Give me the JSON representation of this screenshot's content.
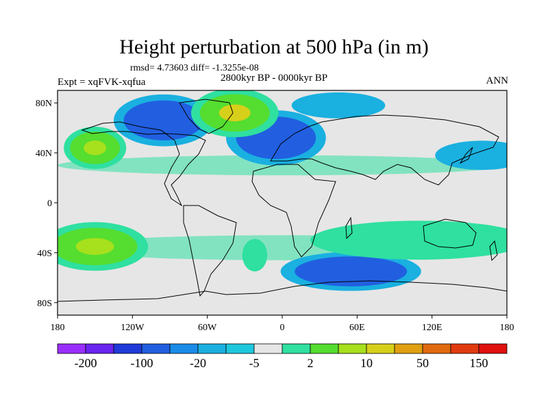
{
  "title": "Height perturbation at 500 hPa (in m)",
  "stats": "rmsd= 4.73603 diff= -1.3255e-08",
  "experiment": "Expt = xqFVK-xqfua",
  "period": "2800kyr BP - 0000kyr BP",
  "season": "ANN",
  "map": {
    "lon_range": [
      -180,
      180
    ],
    "lat_range": [
      -90,
      90
    ],
    "x_ticks": [
      {
        "lon": -180,
        "label": "180"
      },
      {
        "lon": -120,
        "label": "120W"
      },
      {
        "lon": -60,
        "label": "60W"
      },
      {
        "lon": 0,
        "label": "0"
      },
      {
        "lon": 60,
        "label": "60E"
      },
      {
        "lon": 120,
        "label": "120E"
      },
      {
        "lon": 180,
        "label": "180"
      }
    ],
    "y_ticks": [
      {
        "lat": 80,
        "label": "80N"
      },
      {
        "lat": 40,
        "label": "40N"
      },
      {
        "lat": 0,
        "label": "0"
      },
      {
        "lat": -40,
        "label": "40S"
      },
      {
        "lat": -80,
        "label": "80S"
      }
    ],
    "anomalies": [
      {
        "name": "north-atlantic-low",
        "lon": -5,
        "lat": 52,
        "rlon": 32,
        "rlat": 17,
        "level": -20
      },
      {
        "name": "canada-low",
        "lon": -95,
        "lat": 66,
        "rlon": 32,
        "rlat": 16,
        "level": -20
      },
      {
        "name": "greenland-high",
        "lon": -38,
        "lat": 72,
        "rlon": 28,
        "rlat": 15,
        "level": 10
      },
      {
        "name": "pacific-high",
        "lon": -150,
        "lat": 44,
        "rlon": 20,
        "rlat": 13,
        "level": 10
      },
      {
        "name": "north-pacific-low",
        "lon": 160,
        "lat": 38,
        "rlon": 30,
        "rlat": 9,
        "level": -5
      },
      {
        "name": "siberia-low",
        "lon": 45,
        "lat": 78,
        "rlon": 30,
        "rlat": 8,
        "level": -5
      },
      {
        "name": "south-pacific-high",
        "lon": -150,
        "lat": -35,
        "rlon": 34,
        "rlat": 15,
        "level": 10
      },
      {
        "name": "south-atlantic-low",
        "lon": 55,
        "lat": -55,
        "rlon": 45,
        "rlat": 12,
        "level": -20
      },
      {
        "name": "south-indian-ring",
        "lon": 110,
        "lat": -30,
        "rlon": 70,
        "rlat": 12,
        "level": 2
      },
      {
        "name": "south-atlantic-high",
        "lon": -22,
        "lat": -42,
        "rlon": 8,
        "rlat": 10,
        "level": 2
      }
    ]
  },
  "colorbar": {
    "colors": [
      "#9a2ffd",
      "#6a24f0",
      "#1f3ad9",
      "#215fe0",
      "#1a8be8",
      "#1ab0e0",
      "#1dc8dc",
      "#e6e6e6",
      "#2fe0a0",
      "#55dd30",
      "#a7e01c",
      "#d7d01a",
      "#e0a010",
      "#e06a10",
      "#e23a10",
      "#e0100e"
    ],
    "labels": [
      {
        "boundary": 1,
        "label": "-200"
      },
      {
        "boundary": 3,
        "label": "-100"
      },
      {
        "boundary": 5,
        "label": "-20"
      },
      {
        "boundary": 7,
        "label": "-5"
      },
      {
        "boundary": 9,
        "label": "2"
      },
      {
        "boundary": 11,
        "label": "10"
      },
      {
        "boundary": 13,
        "label": "50"
      },
      {
        "boundary": 15,
        "label": "150"
      }
    ]
  },
  "level_colors": {
    "-20": "#215fe0",
    "-5": "#1ab0e0",
    "2": "#2fe0a0",
    "10": "#55dd30",
    "50": "#d7d01a",
    "background": "#e6e6e6"
  }
}
